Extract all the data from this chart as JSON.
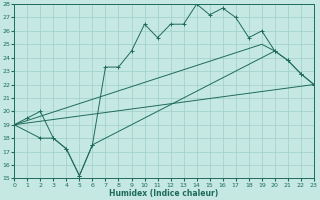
{
  "xlabel": "Humidex (Indice chaleur)",
  "bg_color": "#c5e8e3",
  "grid_color": "#9fcfc8",
  "line_color": "#1e6b5a",
  "xlim": [
    0,
    23
  ],
  "ylim": [
    15,
    28
  ],
  "xticks": [
    0,
    1,
    2,
    3,
    4,
    5,
    6,
    7,
    8,
    9,
    10,
    11,
    12,
    13,
    14,
    15,
    16,
    17,
    18,
    19,
    20,
    21,
    22,
    23
  ],
  "yticks": [
    15,
    16,
    17,
    18,
    19,
    20,
    21,
    22,
    23,
    24,
    25,
    26,
    27,
    28
  ],
  "line1_x": [
    0,
    1,
    2,
    3,
    4,
    5,
    6,
    7,
    8,
    9,
    10,
    11,
    12,
    13,
    14,
    15,
    16,
    17,
    18,
    19,
    20,
    21,
    22,
    23
  ],
  "line1_y": [
    19,
    19.5,
    20,
    18,
    17.2,
    15.2,
    17.5,
    23.3,
    23.3,
    24.5,
    26.5,
    25.5,
    26.5,
    26.5,
    28,
    27.2,
    27.7,
    27,
    25.5,
    26,
    24.5,
    23.8,
    22.8,
    22
  ],
  "line2_x": [
    0,
    2,
    3,
    4,
    5,
    6,
    20,
    21,
    22,
    23
  ],
  "line2_y": [
    19,
    18,
    18,
    17.2,
    15.2,
    17.5,
    24.5,
    23.8,
    22.8,
    22
  ],
  "line3_x": [
    0,
    23
  ],
  "line3_y": [
    19,
    22
  ],
  "line4_x": [
    0,
    19,
    20
  ],
  "line4_y": [
    19,
    25,
    24.5
  ],
  "markersize": 2.0
}
